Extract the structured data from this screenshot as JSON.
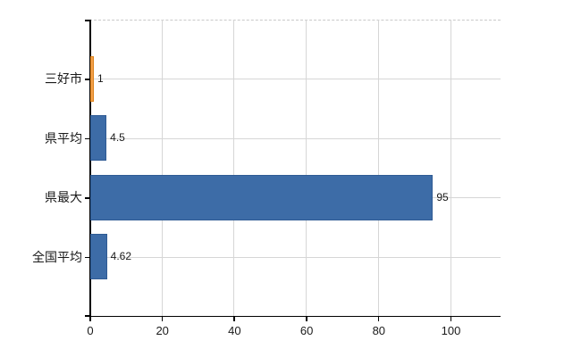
{
  "chart_data": {
    "type": "bar",
    "orientation": "horizontal",
    "title": "",
    "xlabel": "",
    "ylabel": "",
    "categories": [
      "三好市",
      "県平均",
      "県最大",
      "全国平均"
    ],
    "values": [
      1,
      4.5,
      95,
      4.62
    ],
    "value_labels": [
      "1",
      "4.5",
      "95",
      "4.62"
    ],
    "x_ticks": [
      0,
      20,
      40,
      60,
      80,
      100
    ],
    "x_tick_labels": [
      "0",
      "20",
      "40",
      "60",
      "80",
      "100"
    ],
    "xlim": [
      0,
      114
    ],
    "grid": true,
    "legend": false,
    "bar_colors": [
      "#f29f49",
      "#3d6ca7",
      "#3d6ca7",
      "#3d6ca7"
    ],
    "bar_border_colors": [
      "#dd831c",
      "#2f5b94",
      "#2f5b94",
      "#2f5b94"
    ]
  },
  "styles": {
    "background": "#ffffff",
    "axis_color": "#000000",
    "grid_color": "#d6d6d6",
    "top_border_color": "#c9c9c9",
    "text_color": "#1a1a1a"
  }
}
